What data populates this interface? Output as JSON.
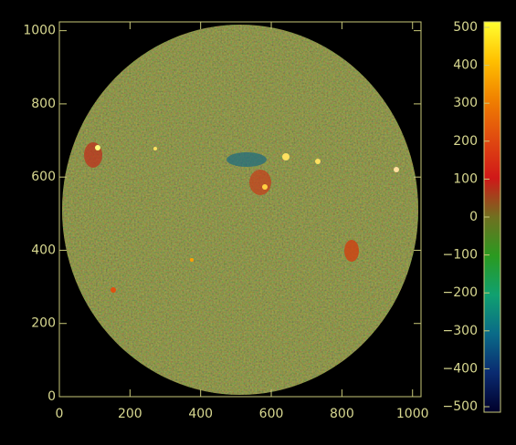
{
  "chart_data": {
    "type": "image",
    "xlim": [
      0,
      1024
    ],
    "ylim": [
      0,
      1024
    ],
    "xticks": [
      0,
      200,
      400,
      600,
      800,
      1000
    ],
    "yticks": [
      0,
      200,
      400,
      600,
      800,
      1000
    ],
    "colorbar": {
      "lim": [
        -500,
        500
      ],
      "ticks": [
        {
          "value": -500,
          "label": "−500"
        },
        {
          "value": -400,
          "label": "−400"
        },
        {
          "value": -300,
          "label": "−300"
        },
        {
          "value": -200,
          "label": "−200"
        },
        {
          "value": -100,
          "label": "−100"
        },
        0,
        100,
        200,
        300,
        400,
        500
      ],
      "colors": [
        "#00002a",
        "#0a2a70",
        "#0a6a88",
        "#10a070",
        "#2a9a20",
        "#707020",
        "#d01818",
        "#e04a10",
        "#f08000",
        "#ffc000",
        "#ffff30"
      ]
    },
    "axis_color": "#c8c878"
  }
}
